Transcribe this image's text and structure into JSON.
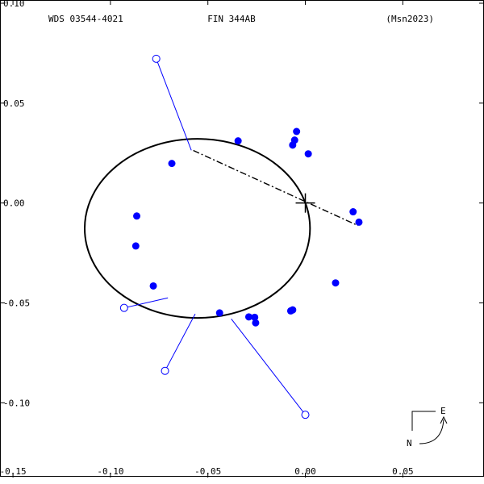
{
  "header": {
    "left": "WDS 03544-4021",
    "center": "FIN 344AB",
    "right": "(Msn2023)"
  },
  "compass": {
    "east": "E",
    "north": "N"
  },
  "chart_data": {
    "type": "scatter",
    "title": "",
    "xlabel": "",
    "ylabel": "",
    "xlim": [
      -0.155,
      0.09
    ],
    "ylim": [
      -0.135,
      0.1
    ],
    "grid": false,
    "x_ticks": [
      -0.15,
      -0.1,
      -0.05,
      0.0,
      0.05
    ],
    "x_tick_labels": [
      "-0.15",
      "-0.10",
      "-0.05",
      "0.00",
      "0.05"
    ],
    "y_ticks": [
      0.1,
      0.05,
      0.0,
      -0.05,
      -0.1
    ],
    "y_tick_labels": [
      "0.10",
      "0.05",
      "0.00",
      "-0.05",
      "-0.10"
    ],
    "colors": {
      "points": "#0000ff",
      "orbit": "#000000",
      "residuals": "#0000ff"
    },
    "orbit_ellipse": {
      "cx": -0.0554,
      "cy": -0.0127,
      "rx": 0.0578,
      "ry": 0.0448
    },
    "line_of_nodes": [
      [
        -0.0575,
        0.0263
      ],
      [
        0.027,
        -0.0113
      ]
    ],
    "primary": [
      0.0,
      0.0
    ],
    "observations": [
      [
        -0.0345,
        0.0311
      ],
      [
        -0.0045,
        0.0358
      ],
      [
        -0.0055,
        0.0315
      ],
      [
        -0.0065,
        0.029
      ],
      [
        0.0015,
        0.0246
      ],
      [
        -0.0685,
        0.0198
      ],
      [
        0.0245,
        -0.0044
      ],
      [
        0.0275,
        -0.0096
      ],
      [
        -0.0865,
        -0.0065
      ],
      [
        -0.087,
        -0.0215
      ],
      [
        -0.078,
        -0.0415
      ],
      [
        0.0155,
        -0.04
      ],
      [
        -0.044,
        -0.055
      ],
      [
        -0.029,
        -0.057
      ],
      [
        -0.026,
        -0.0572
      ],
      [
        -0.0255,
        -0.06
      ],
      [
        -0.0075,
        -0.054
      ],
      [
        -0.0065,
        -0.0535
      ]
    ],
    "outliers": [
      {
        "point": [
          -0.0765,
          0.0722
        ],
        "orbit_point": [
          -0.0585,
          0.0264
        ]
      },
      {
        "point": [
          -0.093,
          -0.0525
        ],
        "orbit_point": [
          -0.0705,
          -0.0475
        ]
      },
      {
        "point": [
          -0.072,
          -0.084
        ],
        "orbit_point": [
          -0.0565,
          -0.0555
        ]
      },
      {
        "point": [
          0.0,
          -0.106
        ],
        "orbit_point": [
          -0.038,
          -0.058
        ]
      }
    ]
  }
}
